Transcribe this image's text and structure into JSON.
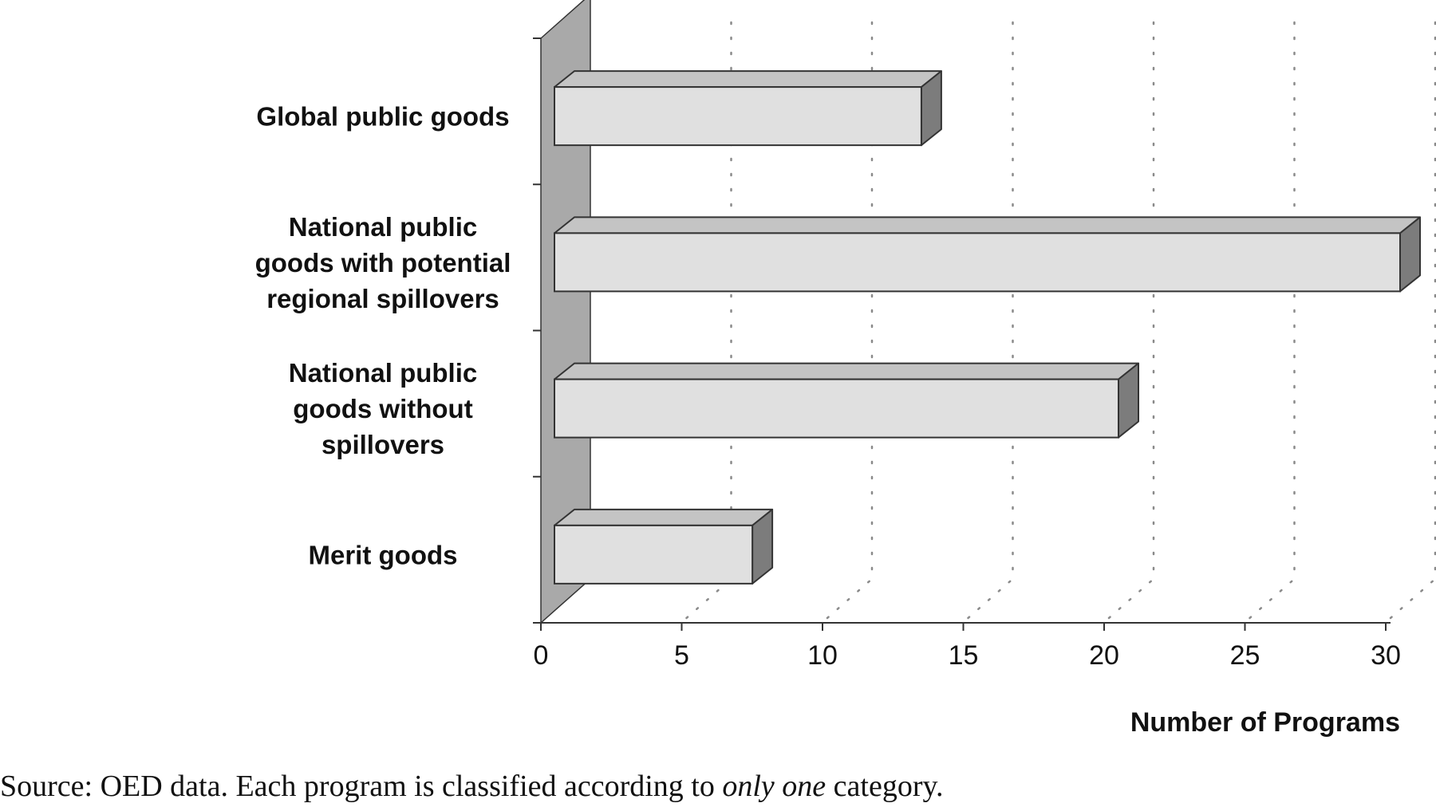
{
  "chart_data": {
    "type": "bar",
    "orientation": "horizontal",
    "style": "3d",
    "categories": [
      "Global public goods",
      "National public goods with potential regional spillovers",
      "National public goods without spillovers",
      "Merit goods"
    ],
    "category_label_lines": [
      [
        "Global public goods"
      ],
      [
        "National public",
        "goods with potential",
        "regional spillovers"
      ],
      [
        "National public",
        "goods without",
        "spillovers"
      ],
      [
        "Merit goods"
      ]
    ],
    "values": [
      13,
      30,
      20,
      7
    ],
    "xlabel": "Number of Programs",
    "xlim": [
      0,
      30
    ],
    "xticks": [
      "0",
      "5",
      "10",
      "15",
      "20",
      "25",
      "30"
    ],
    "grid": "vertical dotted",
    "colors": {
      "bar_face": "#e0e0e0",
      "bar_top": "#c4c4c4",
      "bar_side": "#7c7c7c",
      "wall": "#a9a9a9",
      "outline": "#333333",
      "grid": "#8a8a8a"
    }
  },
  "source_note": {
    "prefix": "Source: OED data. Each program is classified according to ",
    "emphasis": "only one",
    "suffix": " category."
  }
}
